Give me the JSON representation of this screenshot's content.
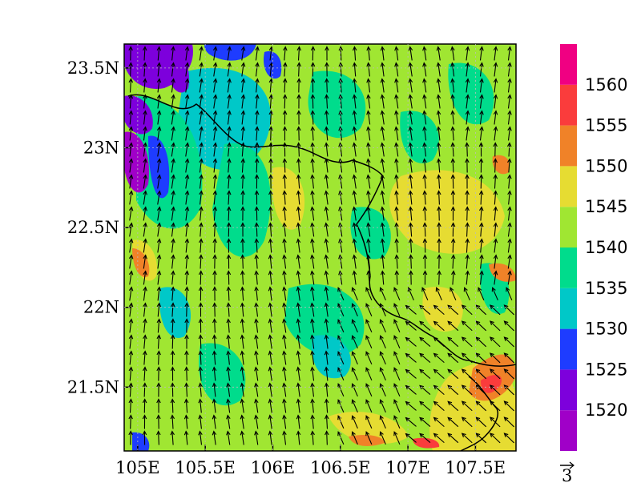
{
  "map": {
    "x_ticks": [
      {
        "lon": 105.0,
        "label": "105E"
      },
      {
        "lon": 105.5,
        "label": "105.5E"
      },
      {
        "lon": 106.0,
        "label": "106E"
      },
      {
        "lon": 106.5,
        "label": "106.5E"
      },
      {
        "lon": 107.0,
        "label": "107E"
      },
      {
        "lon": 107.5,
        "label": "107.5E"
      }
    ],
    "y_ticks": [
      {
        "lat": 23.5,
        "label": "23.5N"
      },
      {
        "lat": 23.0,
        "label": "23N"
      },
      {
        "lat": 22.5,
        "label": "22.5N"
      },
      {
        "lat": 22.0,
        "label": "22N"
      },
      {
        "lat": 21.5,
        "label": "21.5N"
      }
    ],
    "extent": {
      "lon": [
        104.9,
        107.8
      ],
      "lat": [
        21.1,
        23.65
      ]
    }
  },
  "colorbar": {
    "colors": [
      "#a000c8",
      "#7d00dc",
      "#1e3cff",
      "#00c8c8",
      "#00dc8c",
      "#a0e632",
      "#e6dc32",
      "#f08228",
      "#fa3c3c",
      "#f00082"
    ],
    "labels": [
      "1520",
      "1525",
      "1530",
      "1535",
      "1540",
      "1545",
      "1550",
      "1555",
      "1560"
    ]
  },
  "reference_vector": {
    "label": "3"
  }
}
